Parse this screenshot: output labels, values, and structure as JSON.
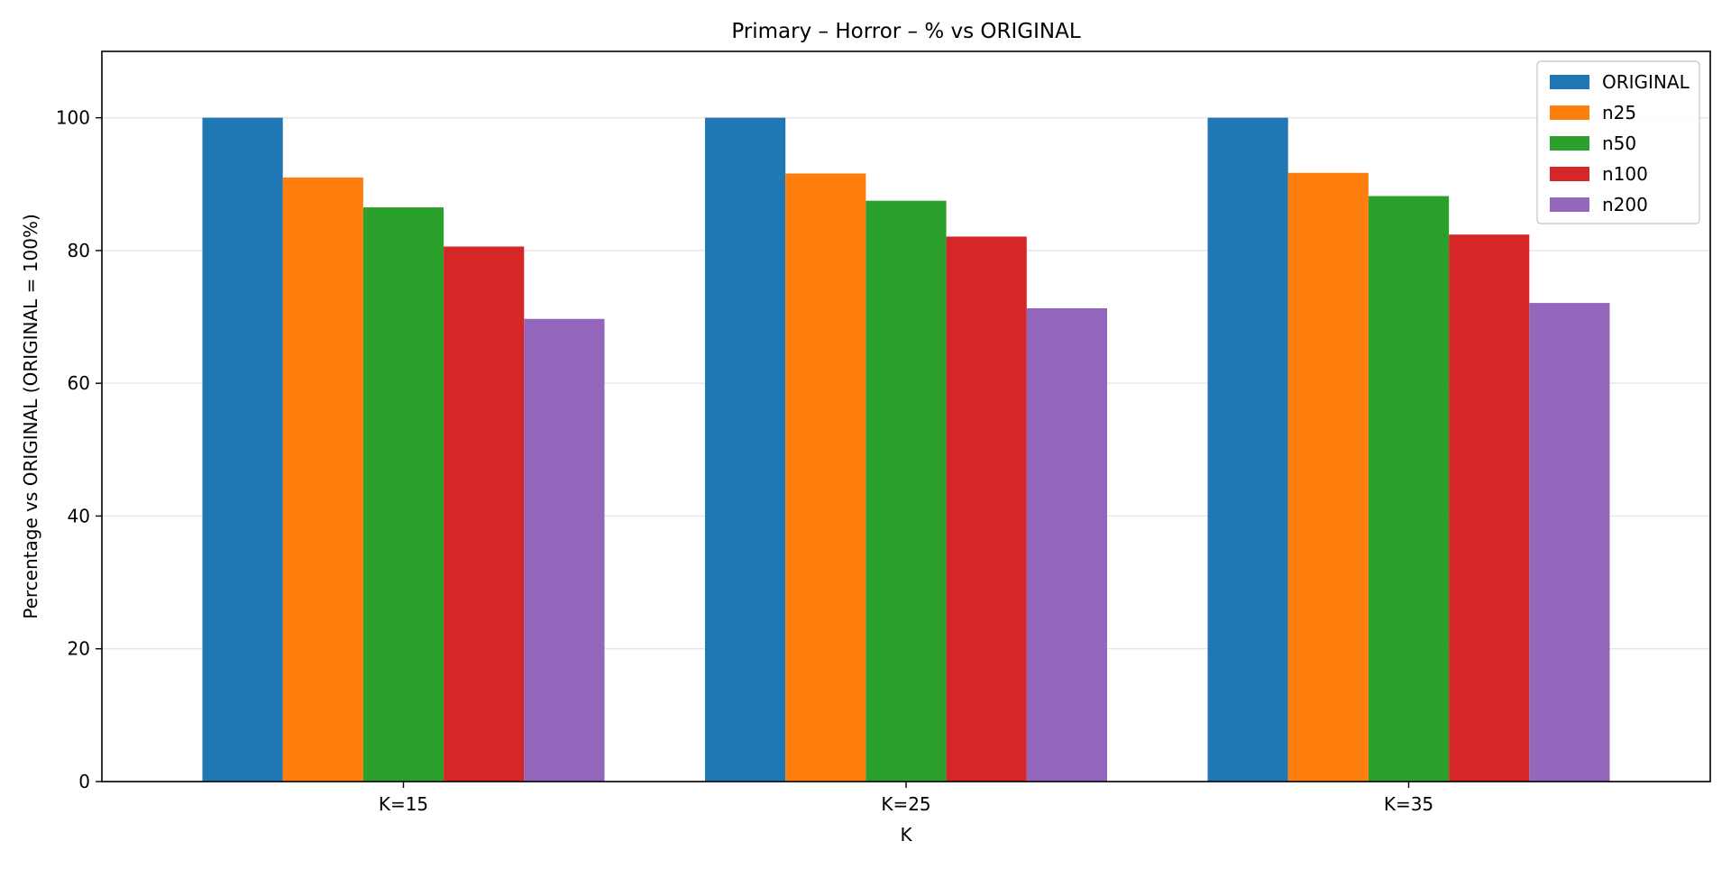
{
  "chart_data": {
    "type": "bar",
    "title": "Primary – Horror – % vs ORIGINAL",
    "xlabel": "K",
    "ylabel": "Percentage vs ORIGINAL (ORIGINAL = 100%)",
    "categories": [
      "K=15",
      "K=25",
      "K=35"
    ],
    "ylim": [
      0,
      110
    ],
    "yticks": [
      0,
      20,
      40,
      60,
      80,
      100
    ],
    "grid": "y",
    "legend_position": "top-right",
    "series": [
      {
        "name": "ORIGINAL",
        "color": "#1f77b4",
        "values": [
          100,
          100,
          100
        ]
      },
      {
        "name": "n25",
        "color": "#ff7f0e",
        "values": [
          91.0,
          91.6,
          91.7
        ]
      },
      {
        "name": "n50",
        "color": "#2ca02c",
        "values": [
          86.5,
          87.5,
          88.2
        ]
      },
      {
        "name": "n100",
        "color": "#d62728",
        "values": [
          80.6,
          82.1,
          82.4
        ]
      },
      {
        "name": "n200",
        "color": "#9467bd",
        "values": [
          69.7,
          71.3,
          72.1
        ]
      }
    ]
  }
}
